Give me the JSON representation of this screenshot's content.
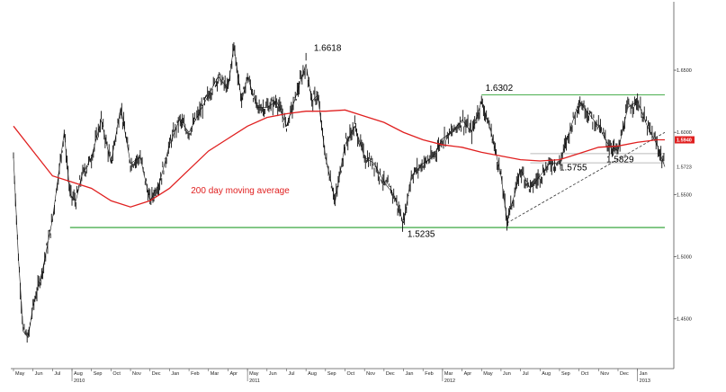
{
  "chart_data": {
    "type": "line",
    "title": "",
    "xlabel": "",
    "ylabel": "",
    "ylim": [
      1.41,
      1.705
    ],
    "y_ticks": [
      1.45,
      1.5,
      1.55,
      1.6,
      1.65
    ],
    "y_tick_labels": [
      "1.4500",
      "1.5000",
      "1.5500",
      "1.6000",
      "1.6500"
    ],
    "x_months": [
      "May",
      "Jun",
      "Jul",
      "Aug",
      "Sep",
      "Oct",
      "Nov",
      "Dec",
      "Jan",
      "Feb",
      "Mar",
      "Apr",
      "May",
      "Jun",
      "Jul",
      "Aug",
      "Sep",
      "Oct",
      "Nov",
      "Dec",
      "Jan",
      "Feb",
      "Mar",
      "Apr",
      "May",
      "Jun",
      "Jul",
      "Aug",
      "Sep",
      "Oct",
      "Nov",
      "Dec",
      "Jan"
    ],
    "x_years": [
      {
        "label": "2010",
        "month_index": 3
      },
      {
        "label": "2011",
        "month_index": 12
      },
      {
        "label": "2012",
        "month_index": 22
      },
      {
        "label": "2013",
        "month_index": 32
      }
    ],
    "series": [
      {
        "kind": "price",
        "color": "#111111",
        "points": [
          [
            0,
            1.58
          ],
          [
            0.25,
            1.5
          ],
          [
            0.5,
            1.44
          ],
          [
            0.75,
            1.435
          ],
          [
            1.0,
            1.46
          ],
          [
            1.5,
            1.49
          ],
          [
            2.0,
            1.53
          ],
          [
            2.3,
            1.565
          ],
          [
            2.6,
            1.6
          ],
          [
            2.9,
            1.55
          ],
          [
            3.2,
            1.545
          ],
          [
            3.5,
            1.565
          ],
          [
            4.0,
            1.58
          ],
          [
            4.5,
            1.61
          ],
          [
            5.0,
            1.575
          ],
          [
            5.5,
            1.62
          ],
          [
            6.0,
            1.575
          ],
          [
            6.5,
            1.58
          ],
          [
            7.0,
            1.545
          ],
          [
            7.5,
            1.56
          ],
          [
            8.0,
            1.59
          ],
          [
            8.5,
            1.61
          ],
          [
            9.0,
            1.6
          ],
          [
            9.5,
            1.615
          ],
          [
            10.0,
            1.63
          ],
          [
            10.5,
            1.645
          ],
          [
            11.0,
            1.635
          ],
          [
            11.3,
            1.67
          ],
          [
            11.7,
            1.625
          ],
          [
            12.0,
            1.645
          ],
          [
            12.5,
            1.62
          ],
          [
            13.0,
            1.62
          ],
          [
            13.5,
            1.625
          ],
          [
            14.0,
            1.605
          ],
          [
            14.5,
            1.63
          ],
          [
            15.0,
            1.655
          ],
          [
            15.3,
            1.625
          ],
          [
            15.6,
            1.63
          ],
          [
            16.0,
            1.58
          ],
          [
            16.5,
            1.545
          ],
          [
            17.0,
            1.59
          ],
          [
            17.5,
            1.605
          ],
          [
            18.0,
            1.58
          ],
          [
            18.5,
            1.575
          ],
          [
            19.0,
            1.56
          ],
          [
            19.5,
            1.55
          ],
          [
            20.0,
            1.527
          ],
          [
            20.4,
            1.565
          ],
          [
            21.0,
            1.575
          ],
          [
            21.5,
            1.58
          ],
          [
            22.0,
            1.595
          ],
          [
            22.5,
            1.6
          ],
          [
            23.0,
            1.61
          ],
          [
            23.5,
            1.6
          ],
          [
            24.0,
            1.625
          ],
          [
            24.5,
            1.6
          ],
          [
            25.0,
            1.565
          ],
          [
            25.3,
            1.53
          ],
          [
            25.7,
            1.55
          ],
          [
            26.0,
            1.57
          ],
          [
            26.5,
            1.555
          ],
          [
            27.0,
            1.565
          ],
          [
            27.5,
            1.575
          ],
          [
            28.0,
            1.575
          ],
          [
            28.5,
            1.6
          ],
          [
            29.0,
            1.625
          ],
          [
            29.5,
            1.615
          ],
          [
            30.0,
            1.605
          ],
          [
            30.5,
            1.59
          ],
          [
            31.0,
            1.585
          ],
          [
            31.5,
            1.62
          ],
          [
            32.0,
            1.625
          ],
          [
            32.5,
            1.605
          ],
          [
            33.0,
            1.59
          ],
          [
            33.4,
            1.5723
          ]
        ]
      },
      {
        "kind": "moving-average",
        "name": "200 day moving average",
        "color": "#e02020",
        "points": [
          [
            0,
            1.605
          ],
          [
            1,
            1.585
          ],
          [
            2,
            1.565
          ],
          [
            3,
            1.56
          ],
          [
            4,
            1.555
          ],
          [
            5,
            1.545
          ],
          [
            6,
            1.54
          ],
          [
            7,
            1.545
          ],
          [
            8,
            1.555
          ],
          [
            9,
            1.57
          ],
          [
            10,
            1.585
          ],
          [
            11,
            1.595
          ],
          [
            12,
            1.605
          ],
          [
            13,
            1.612
          ],
          [
            14,
            1.615
          ],
          [
            15,
            1.617
          ],
          [
            16,
            1.617
          ],
          [
            17,
            1.618
          ],
          [
            18,
            1.613
          ],
          [
            19,
            1.608
          ],
          [
            20,
            1.6
          ],
          [
            21,
            1.594
          ],
          [
            22,
            1.59
          ],
          [
            23,
            1.588
          ],
          [
            24,
            1.584
          ],
          [
            25,
            1.581
          ],
          [
            26,
            1.578
          ],
          [
            27,
            1.577
          ],
          [
            28,
            1.578
          ],
          [
            29,
            1.583
          ],
          [
            30,
            1.588
          ],
          [
            31,
            1.589
          ],
          [
            32,
            1.592
          ],
          [
            33,
            1.594
          ],
          [
            33.4,
            1.594
          ]
        ]
      }
    ],
    "horizontal_levels": [
      {
        "value": 1.6302,
        "color": "#4caf50",
        "x_from": 24.0,
        "x_to": 33.4
      },
      {
        "value": 1.5235,
        "color": "#4caf50",
        "x_from": 2.9,
        "x_to": 33.4
      },
      {
        "value": 1.5755,
        "color": "#bbbbbb",
        "x_from": 26.5,
        "x_to": 33.4
      },
      {
        "value": 1.5829,
        "color": "#bbbbbb",
        "x_from": 26.5,
        "x_to": 33.4
      }
    ],
    "trendline": {
      "points": [
        [
          25.3,
          1.527
        ],
        [
          33.4,
          1.6
        ]
      ],
      "color": "#333333"
    },
    "annotations": [
      {
        "text": "1.6618",
        "x": 15.4,
        "y": 1.6655
      },
      {
        "text": "1.6302",
        "x": 24.2,
        "y": 1.6335
      },
      {
        "text": "1.5235",
        "x": 20.2,
        "y": 1.516
      },
      {
        "text": "1.5755",
        "x": 28.0,
        "y": 1.5695
      },
      {
        "text": "1.5829",
        "x": 30.4,
        "y": 1.576
      }
    ],
    "ma_label": {
      "text": "200 day moving average",
      "x": 9.1,
      "y": 1.551
    },
    "last_values": [
      {
        "text": "1.5940",
        "value": 1.594,
        "box": true
      },
      {
        "text": "1.5723",
        "value": 1.5723,
        "box": false
      }
    ]
  }
}
